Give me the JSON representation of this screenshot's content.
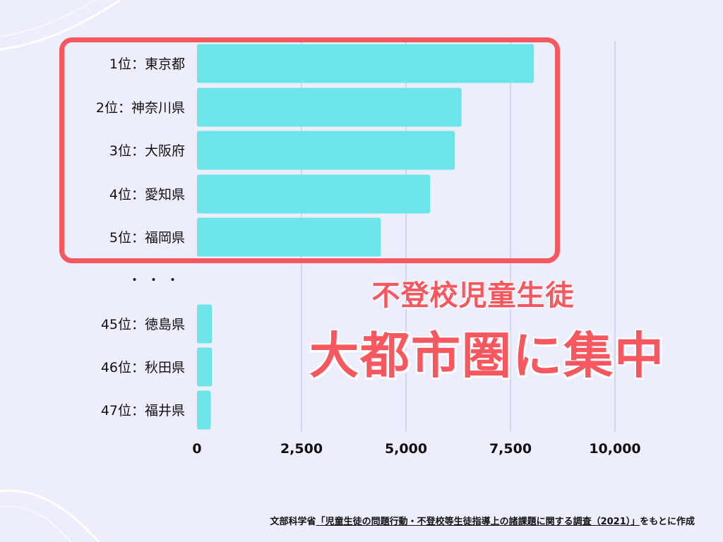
{
  "chart_data": {
    "type": "bar",
    "orientation": "horizontal",
    "categories": [
      "1位：東京都",
      "2位：神奈川県",
      "3位：大阪府",
      "4位：愛知県",
      "5位：福岡県",
      "45位：徳島県",
      "46位：秋田県",
      "47位：福井県"
    ],
    "values": [
      8060,
      6330,
      6170,
      5580,
      4400,
      360,
      360,
      330
    ],
    "ellipsis_label": "・・・",
    "x_ticks": [
      "0",
      "2,500",
      "5,000",
      "7,500",
      "10,000"
    ],
    "xlim": [
      0,
      10000
    ],
    "grid": true,
    "bar_color": "#6ce4e8",
    "grid_color": "#cfcfdf",
    "highlight_color": "#f7575f"
  },
  "overlay": {
    "subtitle": "不登校児童生徒",
    "headline": "大都市圏に集中"
  },
  "source": {
    "prefix": "文部科学省",
    "title": "「児童生徒の問題行動・不登校等生徒指導上の諸課題に関する調査（2021）」",
    "suffix": "をもとに作成"
  }
}
